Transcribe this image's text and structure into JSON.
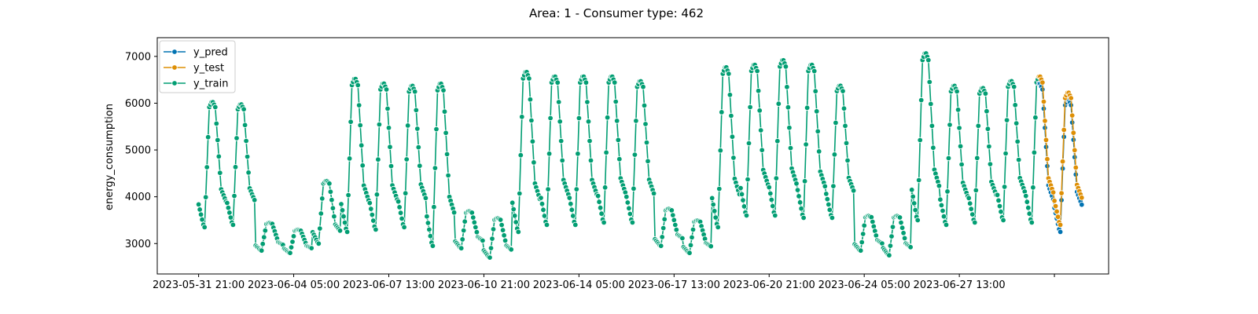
{
  "chart_data": {
    "type": "line",
    "title": "Area: 1 - Consumer type: 462",
    "xlabel": "",
    "ylabel": "energy_consumption",
    "ylim": [
      2350,
      7400
    ],
    "xlim": [
      -1.45,
      31.9
    ],
    "yticks": [
      3000,
      4000,
      5000,
      6000,
      7000
    ],
    "xticks": [
      {
        "pos": 0,
        "label": "2023-05-31 21:00"
      },
      {
        "pos": 3.333,
        "label": "2023-06-04 05:00"
      },
      {
        "pos": 6.667,
        "label": "2023-06-07 13:00"
      },
      {
        "pos": 10.0,
        "label": "2023-06-10 21:00"
      },
      {
        "pos": 13.333,
        "label": "2023-06-14 05:00"
      },
      {
        "pos": 16.667,
        "label": "2023-06-17 13:00"
      },
      {
        "pos": 20.0,
        "label": "2023-06-20 21:00"
      },
      {
        "pos": 23.333,
        "label": "2023-06-24 05:00"
      },
      {
        "pos": 26.667,
        "label": "2023-06-27 13:00"
      },
      {
        "pos": 30.0,
        "label": ""
      }
    ],
    "x_unit": "days since 2023-05-31 21:00, hourly points",
    "daily_profiles": [
      {
        "day": 0,
        "min": 3350,
        "max": 6050
      },
      {
        "day": 1,
        "min": 3400,
        "max": 6000
      },
      {
        "day": 2,
        "min": 2850,
        "max": 3450
      },
      {
        "day": 3,
        "min": 2800,
        "max": 3300
      },
      {
        "day": 4,
        "min": 3000,
        "max": 4350
      },
      {
        "day": 5,
        "min": 3250,
        "max": 6550
      },
      {
        "day": 6,
        "min": 3300,
        "max": 6450
      },
      {
        "day": 7,
        "min": 3350,
        "max": 6400
      },
      {
        "day": 8,
        "min": 2950,
        "max": 6450
      },
      {
        "day": 9,
        "min": 2900,
        "max": 3700
      },
      {
        "day": 10,
        "min": 2700,
        "max": 3550
      },
      {
        "day": 11,
        "min": 3250,
        "max": 6700
      },
      {
        "day": 12,
        "min": 3400,
        "max": 6600
      },
      {
        "day": 13,
        "min": 3400,
        "max": 6600
      },
      {
        "day": 14,
        "min": 3450,
        "max": 6600
      },
      {
        "day": 15,
        "min": 3450,
        "max": 6500
      },
      {
        "day": 16,
        "min": 2950,
        "max": 3750
      },
      {
        "day": 17,
        "min": 2800,
        "max": 3500
      },
      {
        "day": 18,
        "min": 3350,
        "max": 6800
      },
      {
        "day": 19,
        "min": 3600,
        "max": 6850
      },
      {
        "day": 20,
        "min": 3600,
        "max": 6950
      },
      {
        "day": 21,
        "min": 3550,
        "max": 6850
      },
      {
        "day": 22,
        "min": 3550,
        "max": 6400
      },
      {
        "day": 23,
        "min": 2850,
        "max": 3600
      },
      {
        "day": 24,
        "min": 2750,
        "max": 3600
      },
      {
        "day": 25,
        "min": 3500,
        "max": 7100
      },
      {
        "day": 26,
        "min": 3400,
        "max": 6400
      },
      {
        "day": 27,
        "min": 3450,
        "max": 6350
      },
      {
        "day": 28,
        "min": 3500,
        "max": 6500
      },
      {
        "day": 29,
        "min": 3450,
        "max": 6600
      },
      {
        "day": 30,
        "min": 3400,
        "max": 6250
      }
    ],
    "split_day": 29.45,
    "pred_offset": -150,
    "series": [
      {
        "name": "y_pred",
        "color": "#0173b2"
      },
      {
        "name": "y_test",
        "color": "#de8f05"
      },
      {
        "name": "y_train",
        "color": "#029e73"
      }
    ],
    "legend": "top-left",
    "grid": false
  }
}
